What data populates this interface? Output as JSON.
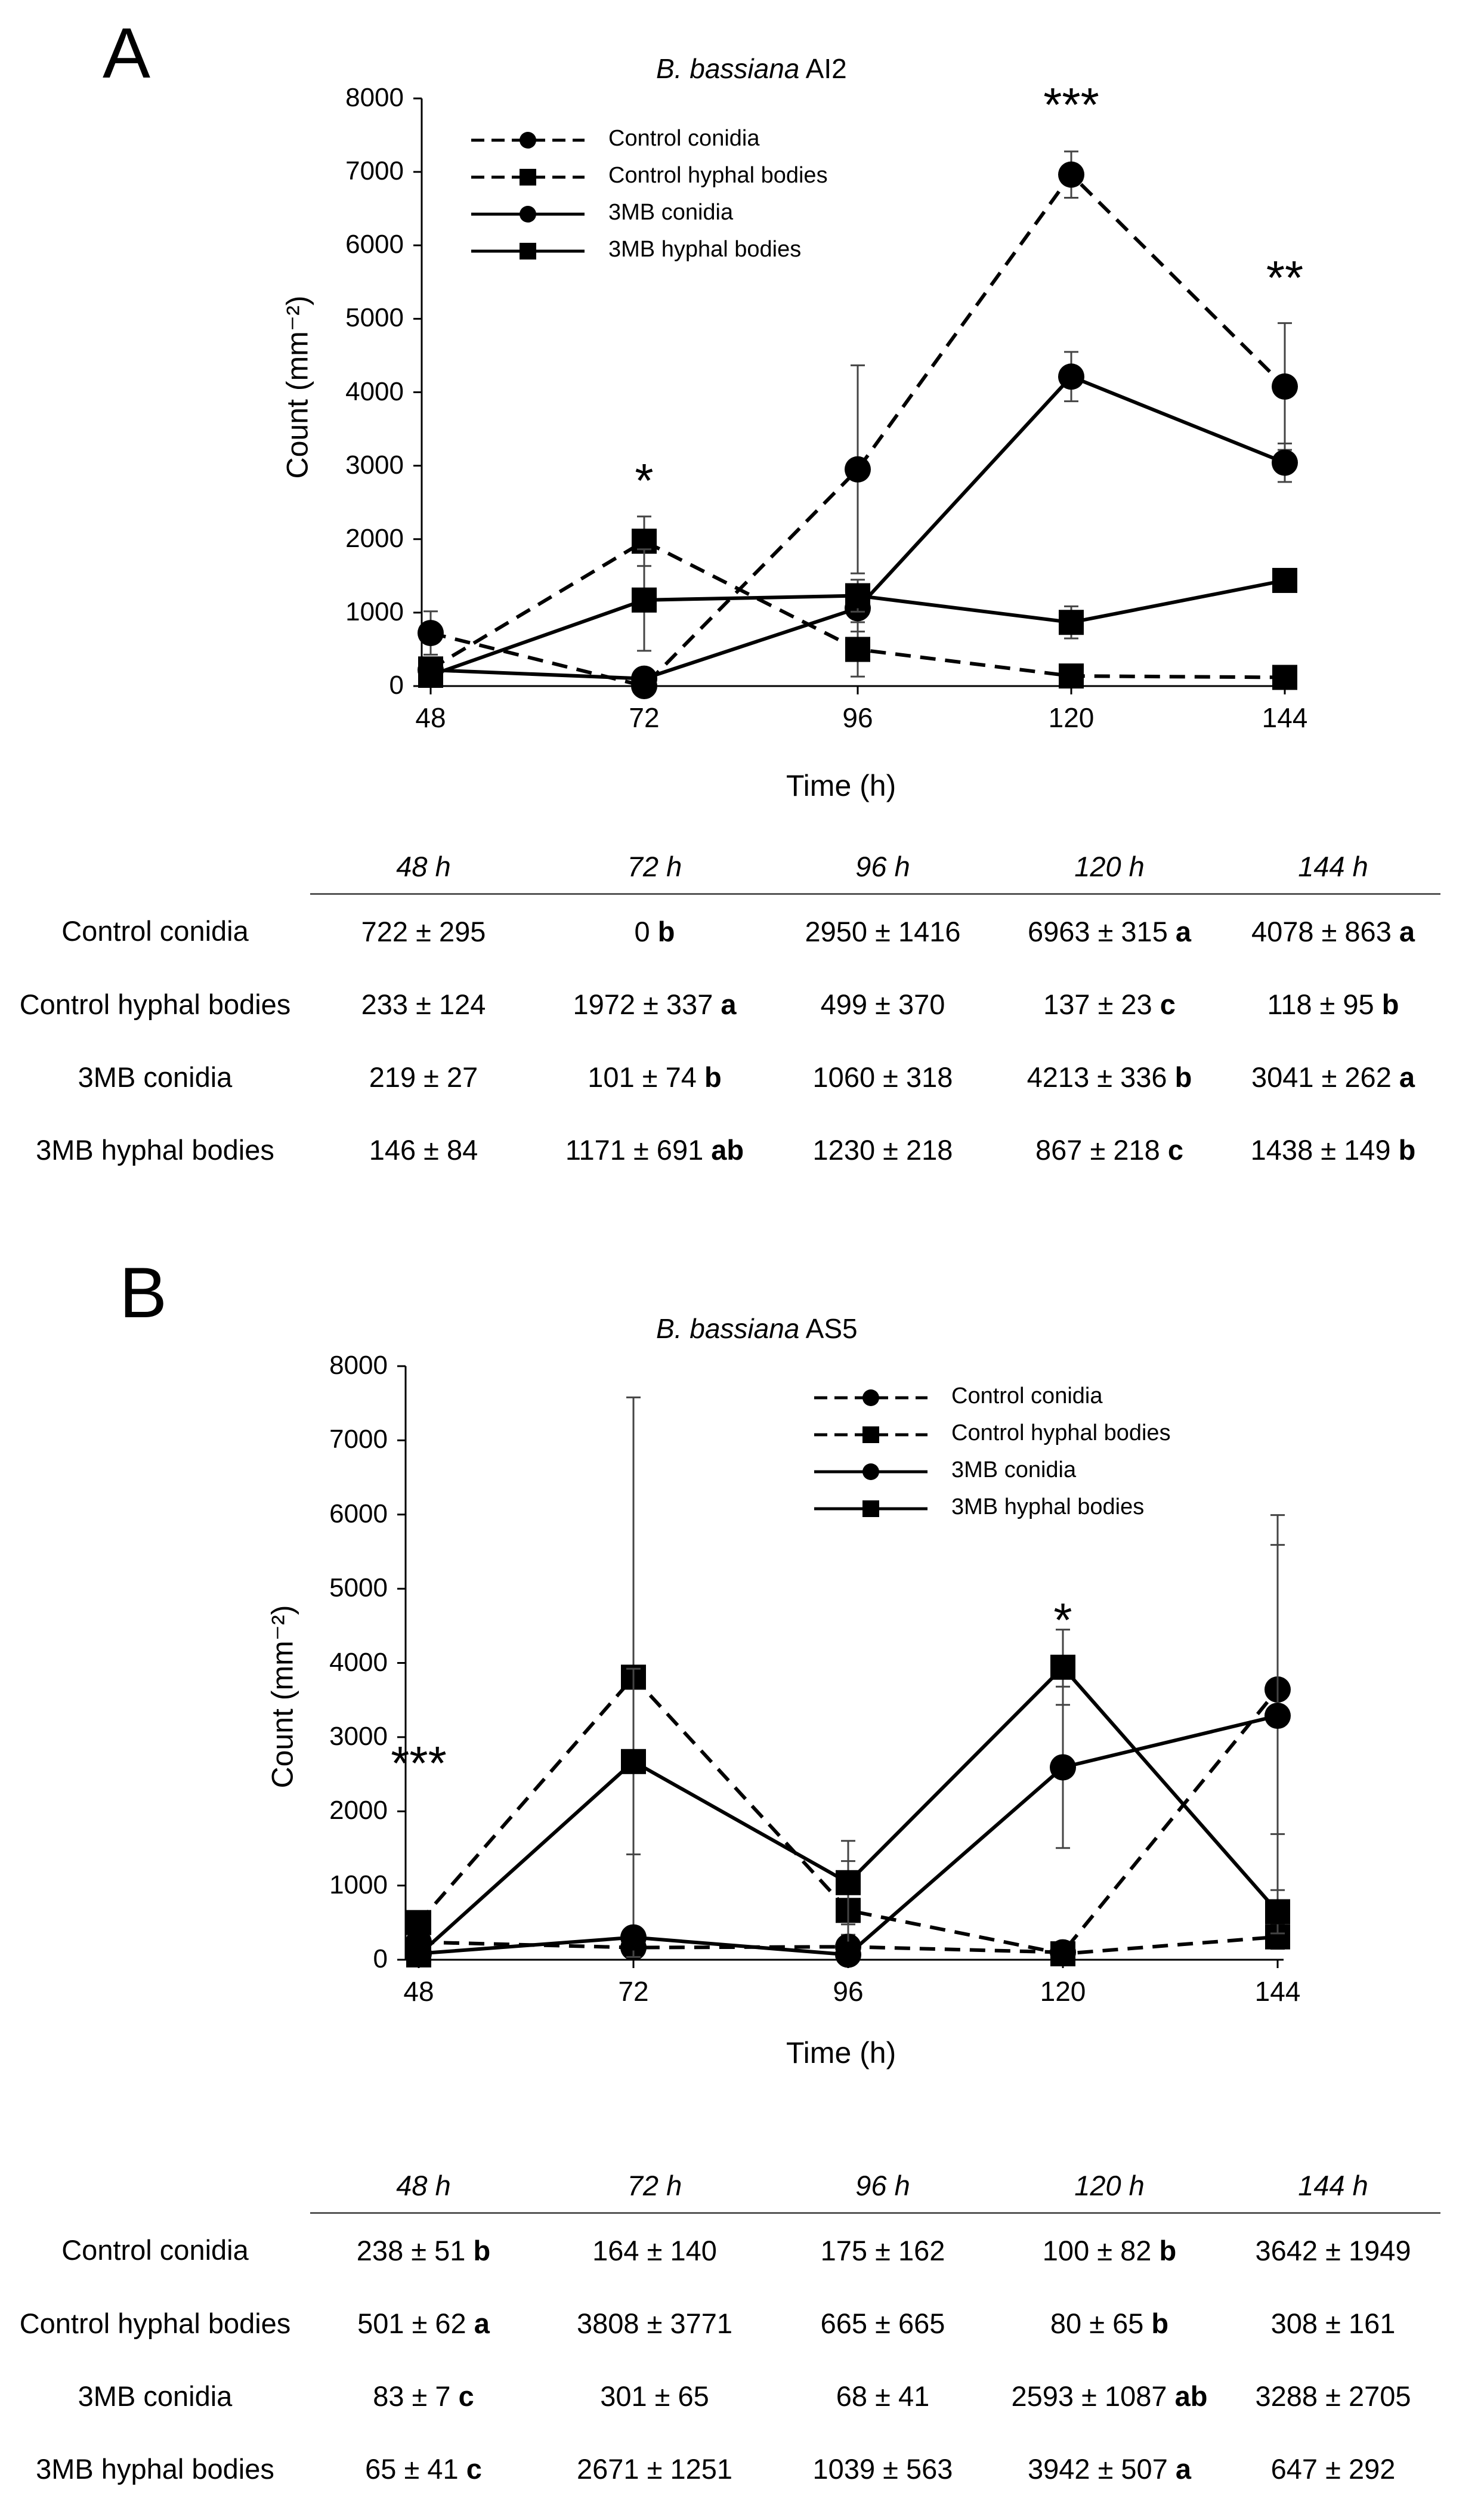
{
  "chart_data": [
    {
      "panel": "A",
      "type": "line",
      "title": "B. bassiana AI2",
      "title_italic": "B. bassiana",
      "title_rest": "AI2",
      "xlabel": "Time (h)",
      "ylabel": "Count (mm⁻²)",
      "x": [
        48,
        72,
        96,
        120,
        144
      ],
      "yticks": [
        0,
        1000,
        2000,
        3000,
        4000,
        5000,
        6000,
        7000,
        8000
      ],
      "ylim": [
        0,
        8000
      ],
      "legend_position": "top-left",
      "series": [
        {
          "name": "Control conidia",
          "line": "dashed",
          "marker": "circle",
          "values": [
            722,
            0,
            2950,
            6963,
            4078
          ],
          "errors": [
            295,
            0,
            1416,
            315,
            863
          ]
        },
        {
          "name": "Control hyphal bodies",
          "line": "dashed",
          "marker": "square",
          "values": [
            233,
            1972,
            499,
            137,
            118
          ],
          "errors": [
            124,
            337,
            370,
            23,
            95
          ]
        },
        {
          "name": "3MB conidia",
          "line": "solid",
          "marker": "circle",
          "values": [
            219,
            101,
            1060,
            4213,
            3041
          ],
          "errors": [
            27,
            74,
            318,
            336,
            262
          ]
        },
        {
          "name": "3MB hyphal bodies",
          "line": "solid",
          "marker": "square",
          "values": [
            146,
            1171,
            1230,
            867,
            1438
          ],
          "errors": [
            84,
            691,
            218,
            218,
            149
          ]
        }
      ],
      "annotations": [
        {
          "x": 72,
          "text": "*"
        },
        {
          "x": 120,
          "text": "***"
        },
        {
          "x": 144,
          "text": "**"
        }
      ],
      "table": {
        "headers": [
          "48 h",
          "72 h",
          "96 h",
          "120 h",
          "144 h"
        ],
        "rows": [
          {
            "name": "Control conidia",
            "cells": [
              {
                "value": "722 ± 295",
                "letter": ""
              },
              {
                "value": "0",
                "letter": "b"
              },
              {
                "value": "2950 ± 1416",
                "letter": ""
              },
              {
                "value": "6963 ± 315",
                "letter": "a"
              },
              {
                "value": "4078 ± 863",
                "letter": "a"
              }
            ]
          },
          {
            "name": "Control hyphal bodies",
            "cells": [
              {
                "value": "233 ± 124",
                "letter": ""
              },
              {
                "value": "1972 ± 337",
                "letter": "a"
              },
              {
                "value": "499 ± 370",
                "letter": ""
              },
              {
                "value": "137 ± 23",
                "letter": "c"
              },
              {
                "value": "118 ± 95",
                "letter": "b"
              }
            ]
          },
          {
            "name": "3MB conidia",
            "cells": [
              {
                "value": "219 ± 27",
                "letter": ""
              },
              {
                "value": "101 ± 74",
                "letter": "b"
              },
              {
                "value": "1060 ± 318",
                "letter": ""
              },
              {
                "value": "4213 ± 336",
                "letter": "b"
              },
              {
                "value": "3041 ± 262",
                "letter": "a"
              }
            ]
          },
          {
            "name": "3MB hyphal bodies",
            "cells": [
              {
                "value": "146 ± 84",
                "letter": ""
              },
              {
                "value": "1171 ± 691",
                "letter": "ab"
              },
              {
                "value": "1230 ± 218",
                "letter": ""
              },
              {
                "value": "867 ± 218",
                "letter": "c"
              },
              {
                "value": "1438 ± 149",
                "letter": "b"
              }
            ]
          }
        ]
      }
    },
    {
      "panel": "B",
      "type": "line",
      "title": "B. bassiana AS5",
      "title_italic": "B. bassiana",
      "title_rest": "AS5",
      "xlabel": "Time (h)",
      "ylabel": "Count (mm⁻²)",
      "x": [
        48,
        72,
        96,
        120,
        144
      ],
      "yticks": [
        0,
        1000,
        2000,
        3000,
        4000,
        5000,
        6000,
        7000,
        8000
      ],
      "ylim": [
        0,
        8000
      ],
      "legend_position": "top-right",
      "series": [
        {
          "name": "Control conidia",
          "line": "dashed",
          "marker": "circle",
          "values": [
            238,
            164,
            175,
            100,
            3642
          ],
          "errors": [
            51,
            140,
            162,
            82,
            1949
          ]
        },
        {
          "name": "Control hyphal bodies",
          "line": "dashed",
          "marker": "square",
          "values": [
            501,
            3808,
            665,
            80,
            308
          ],
          "errors": [
            62,
            3771,
            665,
            65,
            161
          ]
        },
        {
          "name": "3MB conidia",
          "line": "solid",
          "marker": "circle",
          "values": [
            83,
            301,
            68,
            2593,
            3288
          ],
          "errors": [
            7,
            65,
            41,
            1087,
            2705
          ]
        },
        {
          "name": "3MB hyphal bodies",
          "line": "solid",
          "marker": "square",
          "values": [
            65,
            2671,
            1039,
            3942,
            647
          ],
          "errors": [
            41,
            1251,
            563,
            507,
            292
          ]
        }
      ],
      "annotations": [
        {
          "x": 48,
          "text": "***"
        },
        {
          "x": 120,
          "text": "*"
        }
      ],
      "table": {
        "headers": [
          "48 h",
          "72 h",
          "96 h",
          "120 h",
          "144 h"
        ],
        "rows": [
          {
            "name": "Control conidia",
            "cells": [
              {
                "value": "238 ± 51",
                "letter": "b"
              },
              {
                "value": "164 ± 140",
                "letter": ""
              },
              {
                "value": "175 ± 162",
                "letter": ""
              },
              {
                "value": "100 ± 82",
                "letter": "b"
              },
              {
                "value": "3642 ± 1949",
                "letter": ""
              }
            ]
          },
          {
            "name": "Control hyphal bodies",
            "cells": [
              {
                "value": "501 ± 62",
                "letter": "a"
              },
              {
                "value": "3808 ± 3771",
                "letter": ""
              },
              {
                "value": "665 ± 665",
                "letter": ""
              },
              {
                "value": "80 ± 65",
                "letter": "b"
              },
              {
                "value": "308 ± 161",
                "letter": ""
              }
            ]
          },
          {
            "name": "3MB conidia",
            "cells": [
              {
                "value": "83 ± 7",
                "letter": "c"
              },
              {
                "value": "301 ± 65",
                "letter": ""
              },
              {
                "value": "68 ± 41",
                "letter": ""
              },
              {
                "value": "2593 ± 1087",
                "letter": "ab"
              },
              {
                "value": "3288 ± 2705",
                "letter": ""
              }
            ]
          },
          {
            "name": "3MB hyphal bodies",
            "cells": [
              {
                "value": "65 ± 41",
                "letter": "c"
              },
              {
                "value": "2671 ± 1251",
                "letter": ""
              },
              {
                "value": "1039 ± 563",
                "letter": ""
              },
              {
                "value": "3942 ± 507",
                "letter": "a"
              },
              {
                "value": "647 ± 292",
                "letter": ""
              }
            ]
          }
        ]
      }
    }
  ]
}
